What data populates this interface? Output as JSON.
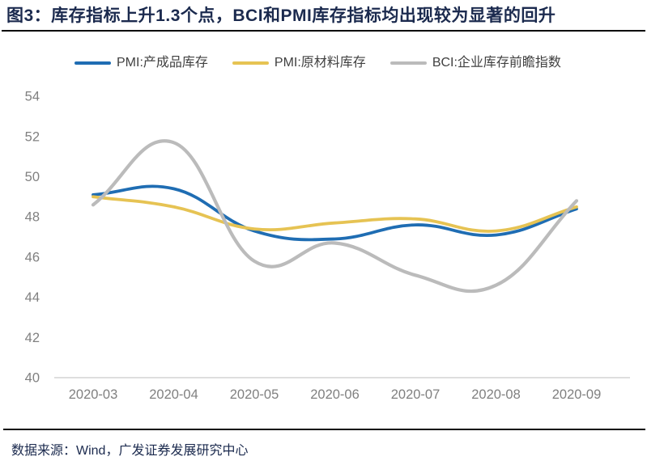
{
  "header": {
    "title": "图3：库存指标上升1.3个点，BCI和PMI库存指标均出现较为显著的回升"
  },
  "footer": {
    "source": "数据来源：Wind，广发证券发展研究中心"
  },
  "colors": {
    "title_navy": "#1b2a4e",
    "divider_black": "#000000",
    "axis_line_gray": "#c9c9c9",
    "tick_label_gray": "#808080",
    "legend_text_gray": "#404040",
    "series_blue": "#1f6db3",
    "series_yellow": "#e6c353",
    "series_gray": "#bbbbbb"
  },
  "chart_data": {
    "type": "line",
    "smooth": true,
    "grid": false,
    "legend_position": "top",
    "title": "",
    "xlabel": "",
    "ylabel": "",
    "ylim": [
      40,
      54
    ],
    "yticks": [
      "40",
      "42",
      "44",
      "46",
      "48",
      "50",
      "52",
      "54"
    ],
    "categories": [
      "2020-03",
      "2020-04",
      "2020-05",
      "2020-06",
      "2020-07",
      "2020-08",
      "2020-09"
    ],
    "series": [
      {
        "name": "PMI:产成品库存",
        "color": "#1f6db3",
        "values": [
          49.1,
          49.4,
          47.3,
          46.9,
          47.6,
          47.1,
          48.4
        ]
      },
      {
        "name": "PMI:原材料库存",
        "color": "#e6c353",
        "values": [
          49.0,
          48.5,
          47.4,
          47.7,
          47.9,
          47.3,
          48.5
        ]
      },
      {
        "name": "BCI:企业库存前瞻指数",
        "color": "#bbbbbb",
        "values": [
          48.6,
          51.7,
          45.8,
          46.7,
          45.1,
          44.6,
          48.8
        ]
      }
    ]
  }
}
